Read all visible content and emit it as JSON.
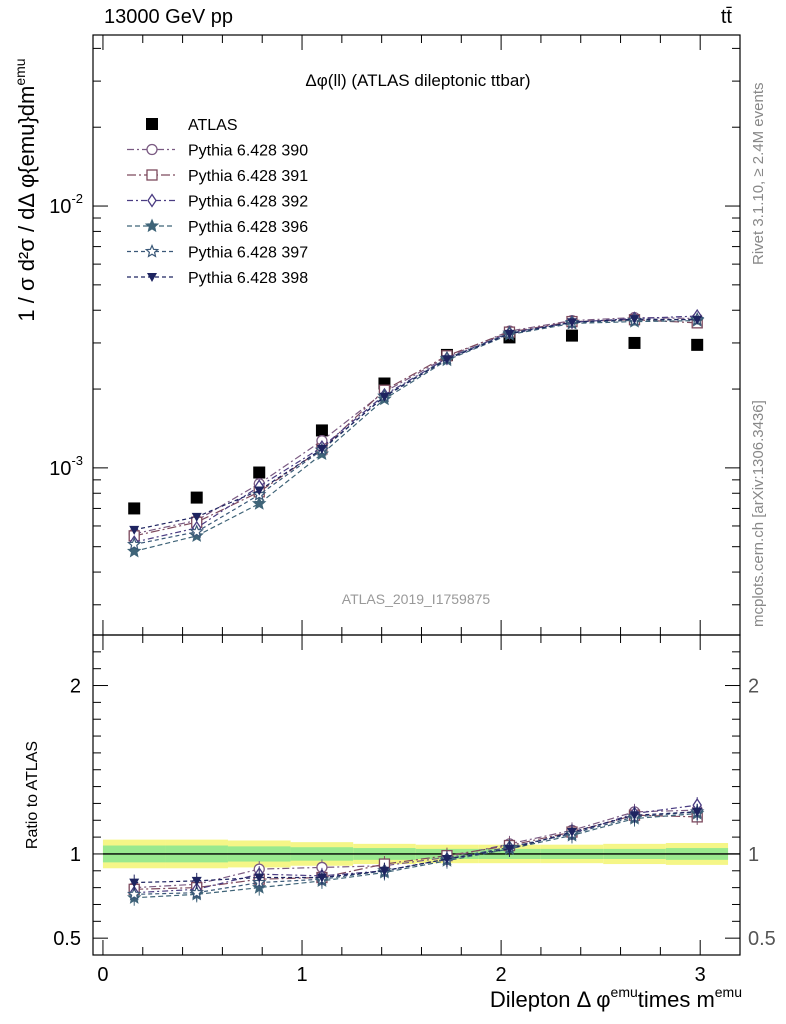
{
  "header": {
    "left": "13000 GeV pp",
    "right": "tt̄",
    "side_rivet": "Rivet 3.1.10, ≥ 2.4M events",
    "side_mcplots": "mcplots.cern.ch [arXiv:1306.3436]"
  },
  "chart_data": [
    {
      "type": "scatter",
      "title": "Δφ(ll) (ATLAS dileptonic ttbar)",
      "watermark": "ATLAS_2019_I1759875",
      "ylabel": "1 / σ  d²σ / dΔ φ{emu}dm^emu",
      "yscale": "log",
      "ylim": [
        0.00023,
        0.045
      ],
      "y_tick_labels": [
        "10^-3",
        "10^-2"
      ],
      "legend_position": "upper-left",
      "x": [
        0.157,
        0.471,
        0.785,
        1.1,
        1.414,
        1.728,
        2.042,
        2.356,
        2.67,
        2.985
      ],
      "series": [
        {
          "name": "ATLAS",
          "color": "#000000",
          "marker": "square-filled",
          "values": [
            0.0007,
            0.00077,
            0.00096,
            0.00139,
            0.0021,
            0.0027,
            0.00315,
            0.0032,
            0.003,
            0.00295
          ]
        },
        {
          "name": "Pythia 6.428 390",
          "color": "#7a5a82",
          "marker": "circle-open",
          "dash": "7,3,2,3",
          "values": [
            0.00056,
            0.00063,
            0.00087,
            0.00127,
            0.00195,
            0.00265,
            0.00333,
            0.00365,
            0.00375,
            0.00372
          ]
        },
        {
          "name": "Pythia 6.428 391",
          "color": "#7d4a5e",
          "marker": "square-open",
          "dash": "9,3,2,3",
          "values": [
            0.00055,
            0.00062,
            0.00081,
            0.00118,
            0.00198,
            0.00268,
            0.0033,
            0.00362,
            0.00368,
            0.00358
          ]
        },
        {
          "name": "Pythia 6.428 392",
          "color": "#4a3c82",
          "marker": "diamond-open",
          "dash": "6,3,2,3",
          "values": [
            0.00052,
            0.00059,
            0.00085,
            0.0012,
            0.0019,
            0.00262,
            0.00328,
            0.0036,
            0.00372,
            0.0038
          ]
        },
        {
          "name": "Pythia 6.428 396",
          "color": "#3f6478",
          "marker": "star-filled",
          "dash": "5,3",
          "values": [
            0.00048,
            0.00055,
            0.00073,
            0.00113,
            0.00183,
            0.00258,
            0.00323,
            0.00356,
            0.00362,
            0.00365
          ]
        },
        {
          "name": "Pythia 6.428 397",
          "color": "#3a5878",
          "marker": "star-open",
          "dash": "4,3",
          "values": [
            0.00051,
            0.00057,
            0.00079,
            0.00117,
            0.00188,
            0.00262,
            0.00327,
            0.00359,
            0.00366,
            0.00369
          ]
        },
        {
          "name": "Pythia 6.428 398",
          "color": "#1e2460",
          "marker": "triangle-down-filled",
          "dash": "4,3",
          "values": [
            0.00058,
            0.00065,
            0.00082,
            0.00118,
            0.00187,
            0.0026,
            0.00325,
            0.0036,
            0.0037,
            0.00368
          ]
        }
      ]
    },
    {
      "type": "scatter",
      "ylabel": "Ratio to ATLAS",
      "xlabel_parts": {
        "main": "Dilepton Δ φ",
        "sup1": "emu",
        "mid": "times m",
        "sup2": "emu"
      },
      "xlim": [
        -0.05,
        3.2
      ],
      "x_ticks": [
        0,
        1,
        2,
        3
      ],
      "ylim": [
        0.4,
        2.3
      ],
      "y_ticks": [
        0.5,
        1,
        2
      ],
      "x": [
        0.157,
        0.471,
        0.785,
        1.1,
        1.414,
        1.728,
        2.042,
        2.356,
        2.67,
        2.985
      ],
      "band_inner": [
        0.05,
        0.05,
        0.045,
        0.04,
        0.035,
        0.03,
        0.03,
        0.03,
        0.03,
        0.035
      ],
      "band_outer": [
        0.085,
        0.085,
        0.08,
        0.07,
        0.06,
        0.055,
        0.055,
        0.055,
        0.06,
        0.065
      ],
      "series": [
        {
          "name": "Pythia 6.428 390",
          "values": [
            0.8,
            0.82,
            0.91,
            0.92,
            0.93,
            0.98,
            1.06,
            1.14,
            1.25,
            1.26
          ]
        },
        {
          "name": "Pythia 6.428 391",
          "values": [
            0.79,
            0.8,
            0.85,
            0.86,
            0.94,
            0.99,
            1.05,
            1.13,
            1.23,
            1.22
          ]
        },
        {
          "name": "Pythia 6.428 392",
          "values": [
            0.77,
            0.79,
            0.88,
            0.87,
            0.9,
            0.97,
            1.04,
            1.12,
            1.24,
            1.29
          ]
        },
        {
          "name": "Pythia 6.428 396",
          "values": [
            0.74,
            0.76,
            0.8,
            0.84,
            0.89,
            0.96,
            1.03,
            1.11,
            1.21,
            1.24
          ]
        },
        {
          "name": "Pythia 6.428 397",
          "values": [
            0.76,
            0.77,
            0.83,
            0.85,
            0.9,
            0.97,
            1.04,
            1.12,
            1.22,
            1.25
          ]
        },
        {
          "name": "Pythia 6.428 398",
          "values": [
            0.83,
            0.84,
            0.86,
            0.86,
            0.9,
            0.97,
            1.03,
            1.13,
            1.23,
            1.25
          ]
        }
      ]
    }
  ]
}
